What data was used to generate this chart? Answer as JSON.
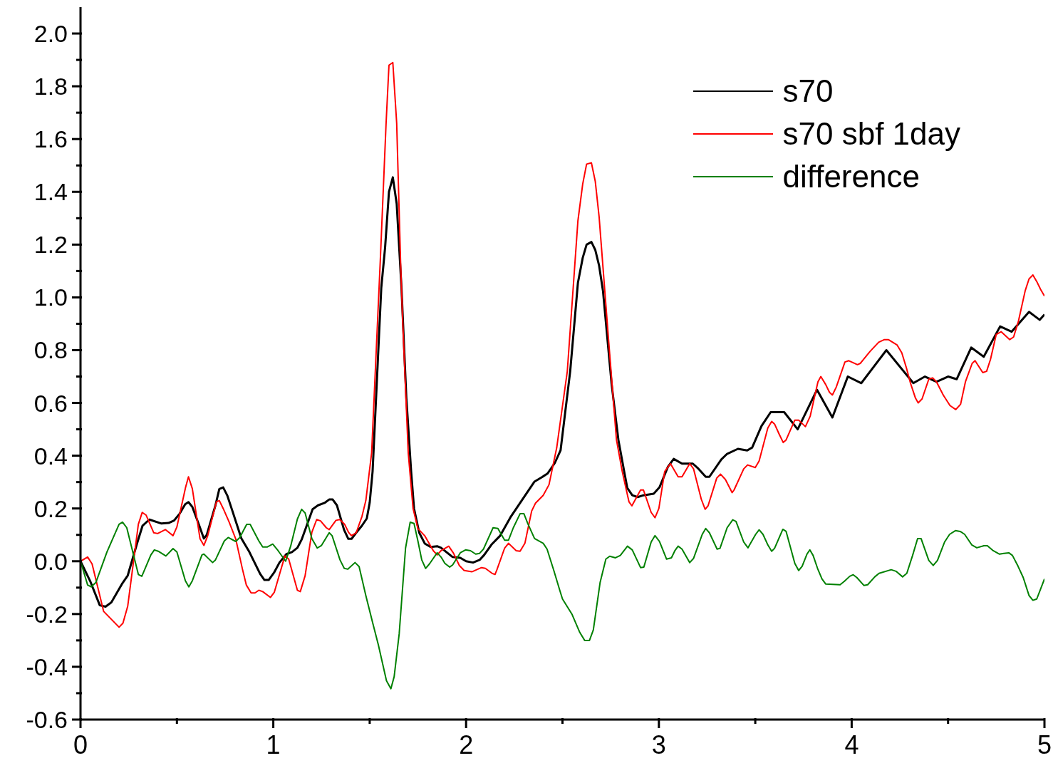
{
  "chart_data": {
    "type": "line",
    "xlim": [
      0,
      5
    ],
    "ylim": [
      -0.6,
      2.1
    ],
    "xticks": [
      0,
      {
        "value": 0.5,
        "label": null
      },
      1,
      {
        "value": 1.5,
        "label": null
      },
      2,
      {
        "value": 2.5,
        "label": null
      },
      3,
      {
        "value": 3.5,
        "label": null
      },
      4,
      {
        "value": 4.5,
        "label": null
      },
      5
    ],
    "yticks": [
      {
        "value": -0.6,
        "label": "-0.6"
      },
      {
        "value": -0.5,
        "label": null
      },
      {
        "value": -0.4,
        "label": "-0.4"
      },
      {
        "value": -0.3,
        "label": null
      },
      {
        "value": -0.2,
        "label": "-0.2"
      },
      {
        "value": -0.1,
        "label": null
      },
      {
        "value": 0,
        "label": "0.0"
      },
      {
        "value": 0.1,
        "label": null
      },
      {
        "value": 0.2,
        "label": "0.2"
      },
      {
        "value": 0.3,
        "label": null
      },
      {
        "value": 0.4,
        "label": "0.4"
      },
      {
        "value": 0.5,
        "label": null
      },
      {
        "value": 0.6,
        "label": "0.6"
      },
      {
        "value": 0.7,
        "label": null
      },
      {
        "value": 0.8,
        "label": "0.8"
      },
      {
        "value": 0.9,
        "label": null
      },
      {
        "value": 1.0,
        "label": "1.0"
      },
      {
        "value": 1.1,
        "label": null
      },
      {
        "value": 1.2,
        "label": "1.2"
      },
      {
        "value": 1.3,
        "label": null
      },
      {
        "value": 1.4,
        "label": "1.4"
      },
      {
        "value": 1.5,
        "label": null
      },
      {
        "value": 1.6,
        "label": "1.6"
      },
      {
        "value": 1.7,
        "label": null
      },
      {
        "value": 1.8,
        "label": "1.8"
      },
      {
        "value": 1.9,
        "label": null
      },
      {
        "value": 2.0,
        "label": "2.0"
      }
    ],
    "grid": false,
    "legend": "top right",
    "marker": "none",
    "line_style": "solid",
    "series": [
      {
        "name": "s70",
        "color": "#000000",
        "x": [
          0,
          0.05,
          0.1,
          0.13,
          0.16,
          0.215,
          0.245,
          0.293,
          0.322,
          0.357,
          0.42,
          0.457,
          0.485,
          0.514,
          0.543,
          0.56,
          0.58,
          0.614,
          0.64,
          0.655,
          0.7,
          0.72,
          0.74,
          0.762,
          0.79,
          0.834,
          0.876,
          0.932,
          0.954,
          0.976,
          1.004,
          1.032,
          1.068,
          1.097,
          1.125,
          1.147,
          1.204,
          1.232,
          1.268,
          1.29,
          1.308,
          1.33,
          1.367,
          1.389,
          1.406,
          1.43,
          1.46,
          1.485,
          1.5,
          1.515,
          1.56,
          1.58,
          1.6,
          1.62,
          1.64,
          1.665,
          1.69,
          1.715,
          1.73,
          1.757,
          1.786,
          1.816,
          1.85,
          1.87,
          1.93,
          1.97,
          2.0,
          2.036,
          2.07,
          2.094,
          2.134,
          2.177,
          2.233,
          2.307,
          2.355,
          2.392,
          2.422,
          2.46,
          2.49,
          2.54,
          2.58,
          2.605,
          2.625,
          2.65,
          2.67,
          2.69,
          2.71,
          2.755,
          2.79,
          2.82,
          2.836,
          2.862,
          2.89,
          2.92,
          2.973,
          3.003,
          3.047,
          3.077,
          3.12,
          3.176,
          3.206,
          3.243,
          3.262,
          3.324,
          3.354,
          3.41,
          3.458,
          3.484,
          3.532,
          3.58,
          3.65,
          3.72,
          3.82,
          3.9,
          3.98,
          4.05,
          4.18,
          4.32,
          4.38,
          4.44,
          4.5,
          4.545,
          4.62,
          4.685,
          4.77,
          4.83,
          4.92,
          4.975,
          5.0
        ],
        "values": [
          0,
          -0.075,
          -0.167,
          -0.172,
          -0.156,
          -0.086,
          -0.054,
          0.067,
          0.135,
          0.158,
          0.143,
          0.145,
          0.154,
          0.18,
          0.216,
          0.224,
          0.206,
          0.139,
          0.086,
          0.1,
          0.212,
          0.274,
          0.28,
          0.248,
          0.186,
          0.087,
          0.035,
          -0.048,
          -0.071,
          -0.071,
          -0.043,
          -0.005,
          0.027,
          0.035,
          0.051,
          0.082,
          0.197,
          0.212,
          0.222,
          0.234,
          0.234,
          0.212,
          0.119,
          0.085,
          0.085,
          0.108,
          0.135,
          0.162,
          0.222,
          0.34,
          1.035,
          1.19,
          1.4,
          1.455,
          1.355,
          1.035,
          0.62,
          0.34,
          0.2,
          0.108,
          0.067,
          0.054,
          0.057,
          0.051,
          0.016,
          0.013,
          0,
          -0.005,
          0.005,
          0.024,
          0.065,
          0.097,
          0.17,
          0.25,
          0.302,
          0.318,
          0.332,
          0.372,
          0.42,
          0.72,
          1.055,
          1.15,
          1.2,
          1.21,
          1.18,
          1.12,
          1.025,
          0.67,
          0.46,
          0.34,
          0.278,
          0.25,
          0.243,
          0.25,
          0.256,
          0.28,
          0.358,
          0.388,
          0.37,
          0.37,
          0.35,
          0.32,
          0.32,
          0.386,
          0.407,
          0.426,
          0.42,
          0.431,
          0.512,
          0.565,
          0.565,
          0.5,
          0.65,
          0.545,
          0.7,
          0.675,
          0.8,
          0.675,
          0.7,
          0.68,
          0.7,
          0.69,
          0.81,
          0.775,
          0.89,
          0.87,
          0.945,
          0.915,
          0.935
        ]
      },
      {
        "name": "s70 sbf 1day",
        "color": "#ff0000",
        "x": [
          0,
          0.037,
          0.06,
          0.12,
          0.2,
          0.22,
          0.245,
          0.3,
          0.32,
          0.34,
          0.38,
          0.4,
          0.44,
          0.48,
          0.5,
          0.545,
          0.56,
          0.58,
          0.62,
          0.64,
          0.66,
          0.705,
          0.72,
          0.74,
          0.77,
          0.805,
          0.84,
          0.86,
          0.885,
          0.905,
          0.925,
          0.945,
          0.985,
          1.005,
          1.033,
          1.06,
          1.08,
          1.125,
          1.14,
          1.165,
          1.2,
          1.225,
          1.245,
          1.275,
          1.29,
          1.325,
          1.345,
          1.37,
          1.39,
          1.405,
          1.43,
          1.46,
          1.48,
          1.51,
          1.555,
          1.585,
          1.6,
          1.62,
          1.64,
          1.66,
          1.67,
          1.7,
          1.725,
          1.75,
          1.785,
          1.83,
          1.85,
          1.87,
          1.91,
          1.935,
          1.965,
          1.99,
          2.03,
          2.08,
          2.1,
          2.135,
          2.15,
          2.16,
          2.2,
          2.22,
          2.26,
          2.28,
          2.305,
          2.34,
          2.36,
          2.4,
          2.43,
          2.47,
          2.525,
          2.58,
          2.605,
          2.625,
          2.65,
          2.67,
          2.69,
          2.74,
          2.78,
          2.81,
          2.845,
          2.86,
          2.905,
          2.92,
          2.96,
          2.98,
          3.0,
          3.03,
          3.06,
          3.1,
          3.12,
          3.16,
          3.18,
          3.22,
          3.24,
          3.255,
          3.3,
          3.32,
          3.345,
          3.38,
          3.39,
          3.44,
          3.46,
          3.5,
          3.52,
          3.565,
          3.585,
          3.6,
          3.625,
          3.645,
          3.66,
          3.705,
          3.725,
          3.76,
          3.785,
          3.825,
          3.84,
          3.865,
          3.885,
          3.9,
          3.92,
          3.965,
          3.985,
          4.03,
          4.045,
          4.095,
          4.14,
          4.17,
          4.19,
          4.235,
          4.26,
          4.285,
          4.305,
          4.33,
          4.345,
          4.365,
          4.4,
          4.42,
          4.44,
          4.475,
          4.51,
          4.54,
          4.565,
          4.59,
          4.625,
          4.64,
          4.68,
          4.7,
          4.72,
          4.75,
          4.775,
          4.82,
          4.84,
          4.865,
          4.9,
          4.92,
          4.94,
          4.96,
          4.98,
          5.0
        ],
        "values": [
          0,
          0.016,
          -0.01,
          -0.19,
          -0.25,
          -0.235,
          -0.17,
          0.14,
          0.185,
          0.175,
          0.108,
          0.105,
          0.12,
          0.097,
          0.13,
          0.28,
          0.32,
          0.275,
          0.085,
          0.06,
          0.097,
          0.225,
          0.23,
          0.2,
          0.15,
          0.085,
          -0.03,
          -0.09,
          -0.12,
          -0.12,
          -0.11,
          -0.115,
          -0.137,
          -0.118,
          -0.048,
          0.02,
          0.008,
          -0.11,
          -0.115,
          -0.055,
          0.11,
          0.158,
          0.153,
          0.127,
          0.12,
          0.155,
          0.158,
          0.14,
          0.11,
          0.097,
          0.108,
          0.17,
          0.23,
          0.41,
          1.14,
          1.66,
          1.88,
          1.89,
          1.66,
          1.14,
          0.93,
          0.41,
          0.2,
          0.124,
          0.097,
          0.04,
          0.024,
          0.04,
          0.057,
          0.03,
          -0.016,
          -0.035,
          -0.04,
          -0.024,
          -0.027,
          -0.046,
          -0.05,
          -0.032,
          0.05,
          0.068,
          0.04,
          0.038,
          0.068,
          0.19,
          0.22,
          0.25,
          0.29,
          0.43,
          0.72,
          1.29,
          1.43,
          1.505,
          1.51,
          1.44,
          1.305,
          0.83,
          0.46,
          0.34,
          0.225,
          0.21,
          0.27,
          0.27,
          0.185,
          0.165,
          0.2,
          0.34,
          0.37,
          0.32,
          0.32,
          0.37,
          0.35,
          0.235,
          0.197,
          0.21,
          0.315,
          0.33,
          0.31,
          0.26,
          0.27,
          0.35,
          0.365,
          0.355,
          0.38,
          0.505,
          0.53,
          0.52,
          0.48,
          0.45,
          0.46,
          0.535,
          0.535,
          0.51,
          0.55,
          0.68,
          0.7,
          0.67,
          0.64,
          0.63,
          0.66,
          0.755,
          0.76,
          0.745,
          0.75,
          0.795,
          0.83,
          0.84,
          0.84,
          0.82,
          0.79,
          0.73,
          0.675,
          0.62,
          0.6,
          0.615,
          0.69,
          0.695,
          0.68,
          0.63,
          0.59,
          0.575,
          0.595,
          0.68,
          0.75,
          0.76,
          0.715,
          0.72,
          0.765,
          0.86,
          0.87,
          0.84,
          0.85,
          0.91,
          1.025,
          1.07,
          1.085,
          1.06,
          1.03,
          1.005
        ]
      },
      {
        "name": "difference",
        "color": "#008000",
        "x": [
          0,
          0.037,
          0.055,
          0.08,
          0.137,
          0.2,
          0.218,
          0.24,
          0.3,
          0.318,
          0.365,
          0.383,
          0.403,
          0.443,
          0.48,
          0.5,
          0.544,
          0.562,
          0.58,
          0.63,
          0.64,
          0.685,
          0.7,
          0.746,
          0.766,
          0.805,
          0.826,
          0.862,
          0.88,
          0.925,
          0.945,
          0.968,
          0.997,
          1.025,
          1.064,
          1.09,
          1.125,
          1.147,
          1.165,
          1.2,
          1.228,
          1.25,
          1.29,
          1.305,
          1.346,
          1.368,
          1.386,
          1.424,
          1.445,
          1.48,
          1.516,
          1.545,
          1.587,
          1.61,
          1.627,
          1.653,
          1.686,
          1.71,
          1.73,
          1.75,
          1.77,
          1.79,
          1.81,
          1.85,
          1.87,
          1.89,
          1.915,
          1.93,
          1.97,
          1.997,
          2.023,
          2.05,
          2.07,
          2.09,
          2.14,
          2.165,
          2.2,
          2.22,
          2.245,
          2.28,
          2.3,
          2.32,
          2.355,
          2.4,
          2.42,
          2.455,
          2.485,
          2.5,
          2.55,
          2.59,
          2.615,
          2.64,
          2.66,
          2.695,
          2.725,
          2.745,
          2.775,
          2.8,
          2.837,
          2.862,
          2.905,
          2.922,
          2.96,
          2.98,
          3.003,
          3.04,
          3.065,
          3.083,
          3.1,
          3.12,
          3.16,
          3.18,
          3.225,
          3.243,
          3.262,
          3.302,
          3.317,
          3.354,
          3.383,
          3.4,
          3.44,
          3.462,
          3.502,
          3.52,
          3.54,
          3.565,
          3.585,
          3.6,
          3.643,
          3.66,
          3.705,
          3.725,
          3.743,
          3.768,
          3.783,
          3.8,
          3.823,
          3.846,
          3.865,
          3.94,
          3.964,
          3.99,
          4.008,
          4.027,
          4.064,
          4.083,
          4.12,
          4.142,
          4.205,
          4.23,
          4.264,
          4.286,
          4.316,
          4.342,
          4.36,
          4.4,
          4.423,
          4.445,
          4.482,
          4.508,
          4.538,
          4.563,
          4.586,
          4.623,
          4.649,
          4.686,
          4.704,
          4.734,
          4.767,
          4.79,
          4.815,
          4.834,
          4.863,
          4.89,
          4.92,
          4.94,
          4.96,
          5.0
        ],
        "values": [
          0,
          -0.09,
          -0.097,
          -0.08,
          0.035,
          0.14,
          0.148,
          0.127,
          -0.05,
          -0.057,
          0.024,
          0.043,
          0.038,
          0.02,
          0.048,
          0.035,
          -0.074,
          -0.097,
          -0.074,
          0.024,
          0.027,
          -0.005,
          0.005,
          0.077,
          0.09,
          0.075,
          0.09,
          0.14,
          0.14,
          0.077,
          0.054,
          0.054,
          0.065,
          0.04,
          0,
          0.057,
          0.16,
          0.197,
          0.183,
          0.086,
          0.05,
          0.06,
          0.108,
          0.097,
          0.005,
          -0.027,
          -0.03,
          -0.005,
          -0.02,
          -0.13,
          -0.235,
          -0.317,
          -0.453,
          -0.483,
          -0.437,
          -0.275,
          0.05,
          0.148,
          0.143,
          0.077,
          0.005,
          -0.027,
          -0.01,
          0.032,
          0.016,
          -0.008,
          -0.022,
          -0.014,
          0.032,
          0.043,
          0.04,
          0.027,
          0.03,
          0.046,
          0.127,
          0.124,
          0.08,
          0.08,
          0.127,
          0.18,
          0.18,
          0.143,
          0.086,
          0.068,
          0.046,
          -0.035,
          -0.108,
          -0.143,
          -0.202,
          -0.27,
          -0.3,
          -0.3,
          -0.26,
          -0.081,
          0.008,
          0.019,
          0.013,
          0.022,
          0.057,
          0.043,
          -0.024,
          -0.022,
          0.073,
          0.097,
          0.075,
          0.008,
          0.013,
          0.04,
          0.057,
          0.046,
          -0.005,
          0.011,
          0.102,
          0.124,
          0.108,
          0.046,
          0.049,
          0.127,
          0.157,
          0.151,
          0.073,
          0.051,
          0.102,
          0.119,
          0.102,
          0.062,
          0.038,
          0.049,
          0.121,
          0.113,
          -0.008,
          -0.035,
          -0.019,
          0.027,
          0.043,
          0.022,
          -0.027,
          -0.067,
          -0.086,
          -0.089,
          -0.075,
          -0.057,
          -0.051,
          -0.062,
          -0.092,
          -0.089,
          -0.059,
          -0.046,
          -0.032,
          -0.038,
          -0.059,
          -0.046,
          0.022,
          0.086,
          0.086,
          0.003,
          -0.016,
          0.003,
          0.073,
          0.102,
          0.116,
          0.113,
          0.102,
          0.062,
          0.051,
          0.059,
          0.059,
          0.04,
          0.027,
          0.03,
          0.032,
          0.022,
          -0.019,
          -0.062,
          -0.13,
          -0.148,
          -0.143,
          -0.067
        ]
      }
    ]
  }
}
